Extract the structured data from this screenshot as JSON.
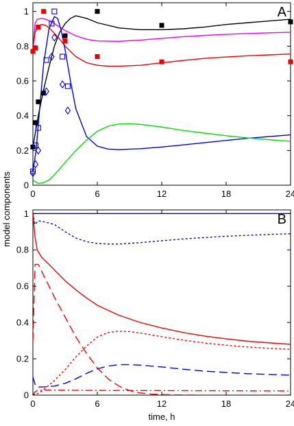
{
  "figure": {
    "ylabel": "model components"
  },
  "chart_data": [
    {
      "panel": "A",
      "type": "line",
      "panel_label": "A",
      "xlim": [
        0,
        24
      ],
      "ylim": [
        0,
        1.05
      ],
      "xticks": [
        0,
        6,
        12,
        18,
        24
      ],
      "yticks": [
        0,
        0.2,
        0.4,
        0.6,
        0.8,
        1
      ],
      "ytick_labels": [
        "0",
        "0.2",
        "0.4",
        "0.6",
        "0.8",
        "1"
      ],
      "xlabel": "",
      "grid": false,
      "series": [
        {
          "color": "#000000",
          "style": "solid",
          "x": [
            0,
            0.5,
            1,
            1.5,
            2,
            2.5,
            3,
            3.5,
            4,
            5,
            6,
            8,
            10,
            12,
            14,
            16,
            18,
            20,
            22,
            24
          ],
          "y": [
            0.22,
            0.4,
            0.55,
            0.68,
            0.8,
            0.88,
            0.93,
            0.96,
            0.975,
            0.96,
            0.935,
            0.905,
            0.895,
            0.895,
            0.9,
            0.91,
            0.925,
            0.935,
            0.945,
            0.955
          ]
        },
        {
          "color": "#ee00ee",
          "style": "solid",
          "x": [
            0,
            0.2,
            0.4,
            0.8,
            1.2,
            1.6,
            2,
            2.5,
            3,
            4,
            5,
            6,
            8,
            10,
            12,
            14,
            16,
            18,
            20,
            22,
            24
          ],
          "y": [
            0.78,
            0.93,
            0.955,
            0.96,
            0.955,
            0.945,
            0.93,
            0.91,
            0.89,
            0.86,
            0.84,
            0.83,
            0.828,
            0.835,
            0.845,
            0.855,
            0.862,
            0.868,
            0.873,
            0.877,
            0.88
          ]
        },
        {
          "color": "#ee0000",
          "style": "solid",
          "x": [
            0,
            0.2,
            0.4,
            0.8,
            1.2,
            1.6,
            2,
            2.5,
            3,
            4,
            5,
            6,
            7,
            8,
            10,
            12,
            14,
            16,
            18,
            20,
            22,
            24
          ],
          "y": [
            0.78,
            0.88,
            0.91,
            0.925,
            0.92,
            0.9,
            0.875,
            0.84,
            0.8,
            0.74,
            0.705,
            0.69,
            0.685,
            0.685,
            0.69,
            0.705,
            0.718,
            0.73,
            0.738,
            0.745,
            0.75,
            0.755
          ]
        },
        {
          "color": "#0000dd",
          "style": "solid",
          "x": [
            0,
            0.3,
            0.6,
            1,
            1.5,
            2,
            2.3,
            2.6,
            3,
            3.5,
            4,
            5,
            6,
            7,
            8,
            10,
            12,
            14,
            16,
            18,
            20,
            22,
            24
          ],
          "y": [
            0.08,
            0.2,
            0.42,
            0.7,
            0.9,
            0.97,
            0.96,
            0.9,
            0.78,
            0.6,
            0.44,
            0.28,
            0.225,
            0.208,
            0.205,
            0.21,
            0.22,
            0.232,
            0.245,
            0.258,
            0.27,
            0.28,
            0.29
          ]
        },
        {
          "color": "#00dd00",
          "style": "solid",
          "x": [
            0,
            0.5,
            1,
            1.5,
            2,
            3,
            4,
            5,
            6,
            7,
            8,
            9,
            10,
            12,
            14,
            16,
            18,
            20,
            22,
            24
          ],
          "y": [
            0.03,
            0.01,
            0.015,
            0.03,
            0.06,
            0.13,
            0.2,
            0.26,
            0.31,
            0.34,
            0.352,
            0.354,
            0.35,
            0.335,
            0.315,
            0.3,
            0.285,
            0.272,
            0.262,
            0.253
          ]
        }
      ],
      "markers": [
        {
          "name": "black-squares",
          "shape": "square-filled",
          "color": "#000000",
          "x": [
            0,
            0.25,
            0.5,
            1,
            3,
            6,
            12,
            24
          ],
          "y": [
            0.22,
            0.36,
            0.48,
            0.53,
            0.86,
            1.0,
            0.92,
            0.94
          ]
        },
        {
          "name": "red-squares",
          "shape": "square-filled",
          "color": "#ee0000",
          "x": [
            0,
            0.25,
            0.5,
            1,
            3,
            6,
            12,
            24
          ],
          "y": [
            0.77,
            0.79,
            0.91,
            1.0,
            0.83,
            0.74,
            0.71,
            0.71
          ]
        },
        {
          "name": "blue-open-squares",
          "shape": "square-open",
          "color": "#0000dd",
          "x": [
            0,
            0.25,
            0.5,
            1.25,
            1.75,
            2,
            2.75,
            3.25
          ],
          "y": [
            0.08,
            0.23,
            0.33,
            0.72,
            0.93,
            1.0,
            0.74,
            0.57
          ]
        },
        {
          "name": "blue-open-diamonds",
          "shape": "diamond-open",
          "color": "#0000dd",
          "x": [
            0,
            0.25,
            0.5,
            1.25,
            1.75,
            2,
            2.75,
            3.25
          ],
          "y": [
            0.07,
            0.12,
            0.2,
            0.54,
            0.74,
            0.85,
            0.58,
            0.43
          ]
        }
      ]
    },
    {
      "panel": "B",
      "type": "line",
      "panel_label": "B",
      "xlim": [
        0,
        24
      ],
      "ylim": [
        0,
        1.02
      ],
      "xticks": [
        0,
        6,
        12,
        18,
        24
      ],
      "yticks": [
        0,
        0.2,
        0.4,
        0.6,
        0.8,
        1
      ],
      "ytick_labels": [
        "0",
        "0.2",
        "0.4",
        "0.6",
        "0.8",
        "1"
      ],
      "xtick_labels": [
        "0",
        "6",
        "12",
        "18",
        "24"
      ],
      "xlabel": "time, h",
      "grid": false,
      "series": [
        {
          "color": "#0000dd",
          "style": "solid",
          "x": [
            0,
            0.05,
            0.2,
            24
          ],
          "y": [
            1.0,
            1.0,
            1.0,
            1.0
          ]
        },
        {
          "color": "#0000dd",
          "style": "dotted",
          "x": [
            0,
            0.2,
            0.5,
            1,
            2,
            3,
            4,
            5,
            6,
            7,
            8,
            10,
            12,
            14,
            16,
            18,
            20,
            22,
            24
          ],
          "y": [
            1.0,
            0.94,
            0.96,
            0.955,
            0.94,
            0.9,
            0.865,
            0.845,
            0.835,
            0.832,
            0.832,
            0.84,
            0.85,
            0.86,
            0.868,
            0.875,
            0.88,
            0.885,
            0.889
          ]
        },
        {
          "color": "#ee0000",
          "style": "solid",
          "x": [
            0,
            0.2,
            0.4,
            0.8,
            1.5,
            2,
            3,
            4,
            5,
            6,
            8,
            10,
            12,
            14,
            16,
            18,
            20,
            22,
            24
          ],
          "y": [
            1.0,
            0.87,
            0.8,
            0.76,
            0.72,
            0.69,
            0.63,
            0.58,
            0.535,
            0.495,
            0.44,
            0.4,
            0.37,
            0.345,
            0.325,
            0.31,
            0.297,
            0.288,
            0.28
          ]
        },
        {
          "color": "#ee0000",
          "style": "dashed",
          "x": [
            0,
            0.2,
            0.5,
            1,
            1.5,
            2,
            3,
            4,
            5,
            6,
            7,
            8,
            9,
            10,
            11,
            12,
            14,
            16,
            18,
            20,
            24
          ],
          "y": [
            0.3,
            0.72,
            0.72,
            0.66,
            0.6,
            0.54,
            0.43,
            0.32,
            0.23,
            0.15,
            0.09,
            0.05,
            0.025,
            0.012,
            0.006,
            0.003,
            0.001,
            0.0,
            0.0,
            0.0,
            0.0
          ]
        },
        {
          "color": "#ee0000",
          "style": "dotted",
          "x": [
            0,
            0.5,
            1,
            2,
            3,
            4,
            5,
            6,
            7,
            8,
            9,
            10,
            12,
            14,
            16,
            18,
            20,
            22,
            24
          ],
          "y": [
            0.0,
            0.01,
            0.03,
            0.08,
            0.14,
            0.21,
            0.27,
            0.32,
            0.345,
            0.352,
            0.35,
            0.342,
            0.322,
            0.303,
            0.287,
            0.275,
            0.265,
            0.258,
            0.252
          ]
        },
        {
          "color": "#ee0000",
          "style": "dashdot",
          "x": [
            0,
            0.2,
            0.4,
            0.8,
            1.5,
            3,
            6,
            12,
            18,
            24
          ],
          "y": [
            0.0,
            0.018,
            0.025,
            0.028,
            0.028,
            0.027,
            0.026,
            0.025,
            0.024,
            0.023
          ]
        },
        {
          "color": "#0000dd",
          "style": "dashed",
          "x": [
            0,
            0.2,
            0.4,
            1,
            2,
            3,
            4,
            5,
            6,
            7,
            8,
            9,
            10,
            12,
            14,
            16,
            18,
            20,
            22,
            24
          ],
          "y": [
            0.1,
            0.06,
            0.045,
            0.045,
            0.05,
            0.065,
            0.09,
            0.12,
            0.145,
            0.16,
            0.168,
            0.168,
            0.165,
            0.155,
            0.143,
            0.132,
            0.125,
            0.118,
            0.114,
            0.11
          ]
        }
      ],
      "markers": []
    }
  ]
}
